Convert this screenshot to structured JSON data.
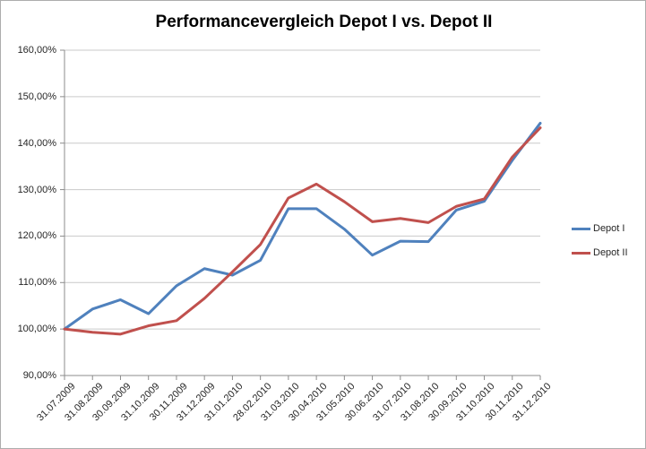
{
  "window": {
    "background": "#ffffff",
    "border_color": "#adadad"
  },
  "chart_data": {
    "type": "line",
    "title": "Performancevergleich Depot I vs. Depot II",
    "categories": [
      "31.07.2009",
      "31.08.2009",
      "30.09.2009",
      "31.10.2009",
      "30.11.2009",
      "31.12.2009",
      "31.01.2010",
      "28.02.2010",
      "31.03.2010",
      "30.04.2010",
      "31.05.2010",
      "30.06.2010",
      "31.07.2010",
      "31.08.2010",
      "30.09.2010",
      "31.10.2010",
      "30.11.2010",
      "31.12.2010"
    ],
    "series": [
      {
        "name": "Depot I",
        "color": "#4f81bd",
        "values": [
          100.0,
          104.3,
          106.3,
          103.3,
          109.3,
          113.0,
          111.6,
          114.8,
          125.9,
          125.9,
          121.5,
          115.9,
          118.9,
          118.8,
          125.6,
          127.5,
          136.3,
          144.3
        ]
      },
      {
        "name": "Depot II",
        "color": "#c0504d",
        "values": [
          100.0,
          99.3,
          98.9,
          100.7,
          101.8,
          106.6,
          112.3,
          118.2,
          128.2,
          131.2,
          127.4,
          123.1,
          123.8,
          122.9,
          126.4,
          128.0,
          137.0,
          143.3
        ]
      }
    ],
    "y_axis": {
      "min": 90,
      "max": 160,
      "step": 10,
      "tick_labels": [
        "90,00%",
        "100,00%",
        "110,00%",
        "120,00%",
        "130,00%",
        "140,00%",
        "150,00%",
        "160,00%"
      ]
    },
    "x_axis": {
      "label_rotation_deg": 45
    },
    "legend_position": "right",
    "grid": true,
    "grid_color": "#c9c9c9",
    "axis_color": "#8c8c8c",
    "ylim": [
      90,
      160
    ]
  }
}
